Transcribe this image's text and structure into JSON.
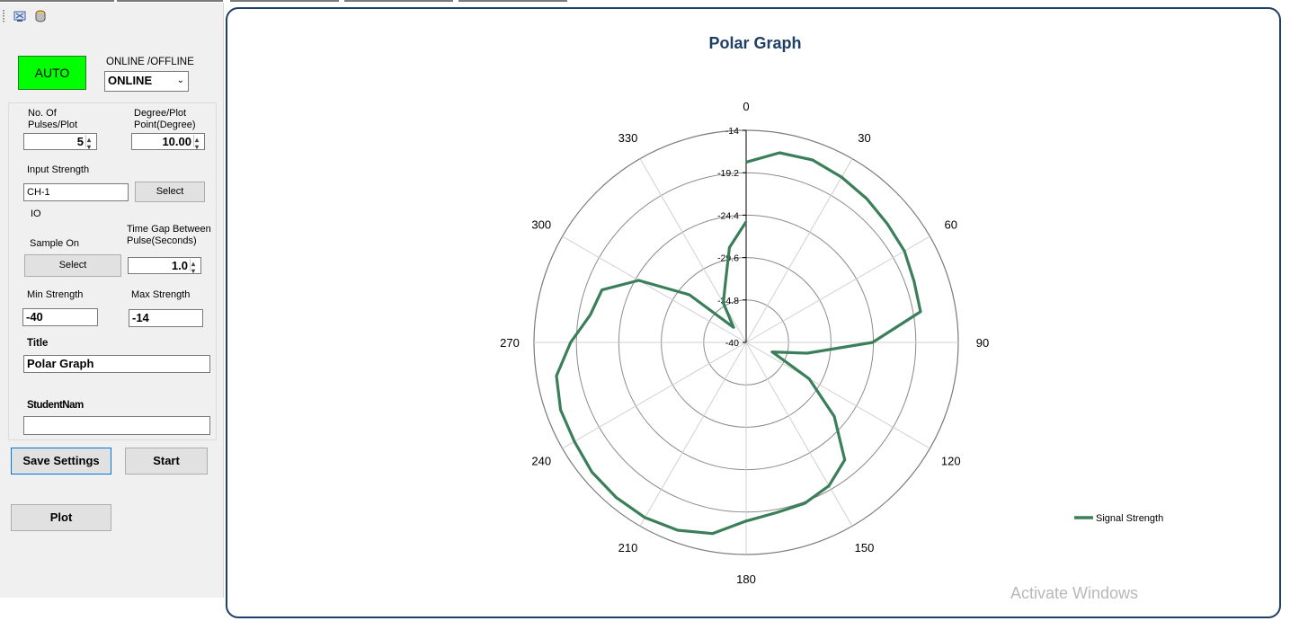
{
  "toolbar": {
    "icons": [
      "network-icon",
      "database-icon"
    ]
  },
  "controls": {
    "auto_label": "AUTO",
    "mode_label": "ONLINE /OFFLINE",
    "mode_value": "ONLINE",
    "pulses_label_1": "No. Of",
    "pulses_label_2": "Pulses/Plot",
    "pulses_value": "5",
    "degree_label_1": "Degree/Plot",
    "degree_label_2": "Point(Degree)",
    "degree_value": "10.00",
    "input_strength_label": "Input Strength",
    "input_strength_value": "CH-1",
    "select_label": "Select",
    "io_label": "IO",
    "sample_on_label": "Sample On",
    "sample_select_label": "Select",
    "time_gap_label_1": "Time Gap Between",
    "time_gap_label_2": "Pulse(Seconds)",
    "time_gap_value": "1.0",
    "min_strength_label": "Min Strength",
    "min_strength_value": "-40",
    "max_strength_label": "Max Strength",
    "max_strength_value": "-14",
    "title_label": "Title",
    "title_value": "Polar Graph",
    "student_label": "StudentNam",
    "student_value": "",
    "save_settings_label": "Save Settings",
    "start_label": "Start",
    "plot_label": "Plot"
  },
  "watermark": "Activate Windows",
  "colors": {
    "series": "#3a7f5a",
    "auto_bg": "#00ff00",
    "chart_border": "#1e3f66",
    "title": "#1f3e66"
  },
  "chart_data": {
    "type": "polar-line",
    "title": "Polar Graph",
    "angle_labels": [
      "0",
      "30",
      "60",
      "90",
      "120",
      "150",
      "180",
      "210",
      "240",
      "270",
      "300",
      "330"
    ],
    "radial_labels": [
      "-14",
      "-19.2",
      "-24.4",
      "-29.6",
      "-34.8",
      "-40"
    ],
    "radial_range": [
      -40,
      -14
    ],
    "legend": "Signal Strength",
    "legend_position": "right",
    "series": [
      {
        "name": "Signal Strength",
        "angles": [
          0,
          10,
          20,
          30,
          40,
          50,
          60,
          70,
          80,
          90,
          100,
          110,
          120,
          130,
          140,
          150,
          160,
          170,
          180,
          190,
          200,
          210,
          220,
          230,
          240,
          250,
          260,
          270,
          280,
          290,
          300,
          310,
          320,
          330,
          340,
          350,
          360
        ],
        "values": [
          -17.9,
          -16.4,
          -16.2,
          -16.6,
          -17.0,
          -17.4,
          -17.6,
          -18.1,
          -18.3,
          -24.5,
          -32.4,
          -36.6,
          -31.1,
          -25.9,
          -21.2,
          -19.7,
          -19.0,
          -18.8,
          -18.1,
          -16.2,
          -15.5,
          -15.2,
          -15.2,
          -15.3,
          -15.7,
          -15.8,
          -16.4,
          -18.5,
          -20.6,
          -21.2,
          -24.8,
          -30.9,
          -37.6,
          -34.4,
          -32.5,
          -28.2,
          -25.2
        ]
      }
    ]
  }
}
